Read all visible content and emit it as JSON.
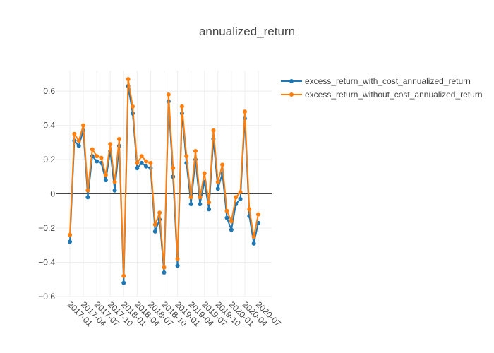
{
  "chart_data": {
    "type": "line",
    "title": "annualized_return",
    "xlabel": "",
    "ylabel": "",
    "x_ticks": [
      "2017-01",
      "2017-04",
      "2017-07",
      "2017-10",
      "2018-01",
      "2018-04",
      "2018-07",
      "2018-10",
      "2019-01",
      "2019-04",
      "2019-07",
      "2019-10",
      "2020-01",
      "2020-04",
      "2020-07"
    ],
    "y_ticks": [
      -0.6,
      -0.4,
      -0.2,
      0,
      0.2,
      0.4,
      0.6
    ],
    "y_tick_labels": [
      "−0.6",
      "−0.4",
      "−0.2",
      "0",
      "0.2",
      "0.4",
      "0.6"
    ],
    "ylim": [
      -0.6,
      0.72
    ],
    "grid": true,
    "legend_position": "top-right",
    "series": [
      {
        "name": "excess_return_with_cost_annualized_return",
        "color": "#1f77b4",
        "values": [
          -0.28,
          0.31,
          0.28,
          0.37,
          -0.02,
          0.22,
          0.19,
          0.18,
          0.08,
          0.25,
          0.02,
          0.28,
          -0.52,
          0.63,
          0.47,
          0.15,
          0.18,
          0.16,
          0.15,
          -0.22,
          -0.15,
          -0.46,
          0.54,
          0.1,
          -0.42,
          0.47,
          0.18,
          -0.06,
          0.2,
          -0.06,
          0.07,
          -0.09,
          0.32,
          0.03,
          0.12,
          -0.14,
          -0.21,
          -0.06,
          -0.03,
          0.44,
          -0.13,
          -0.29,
          -0.17
        ]
      },
      {
        "name": "excess_return_without_cost_annualized_return",
        "color": "#ff7f0e",
        "values": [
          -0.24,
          0.35,
          0.31,
          0.4,
          0.02,
          0.26,
          0.22,
          0.21,
          0.11,
          0.29,
          0.07,
          0.32,
          -0.48,
          0.67,
          0.51,
          0.18,
          0.22,
          0.19,
          0.18,
          -0.18,
          -0.11,
          -0.43,
          0.58,
          0.15,
          -0.38,
          0.51,
          0.22,
          -0.02,
          0.25,
          -0.02,
          0.12,
          -0.05,
          0.37,
          0.07,
          0.17,
          -0.1,
          -0.16,
          -0.02,
          0.01,
          0.48,
          -0.09,
          -0.25,
          -0.12
        ]
      }
    ]
  }
}
